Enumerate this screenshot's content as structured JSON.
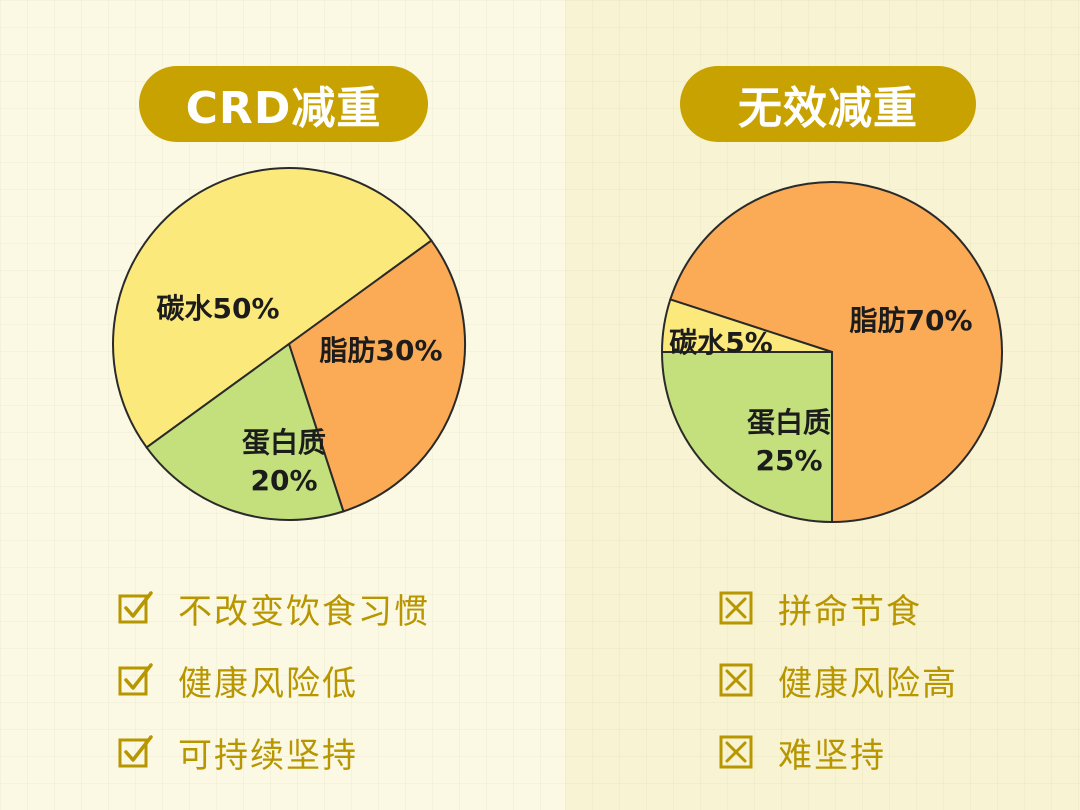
{
  "colors": {
    "accent": "#c7a200",
    "carb": "#fbe97c",
    "fat": "#fbab55",
    "protein": "#c3e07c",
    "text_gold": "#b89600"
  },
  "left": {
    "title": "CRD减重",
    "checks": [
      {
        "icon": "checked-box-icon",
        "text": "不改变饮食习惯"
      },
      {
        "icon": "checked-box-icon",
        "text": "健康风险低"
      },
      {
        "icon": "checked-box-icon",
        "text": "可持续坚持"
      }
    ]
  },
  "right": {
    "title": "无效减重",
    "checks": [
      {
        "icon": "crossed-box-icon",
        "text": "拼命节食"
      },
      {
        "icon": "crossed-box-icon",
        "text": "健康风险高"
      },
      {
        "icon": "crossed-box-icon",
        "text": "难坚持"
      }
    ]
  },
  "chart_data": [
    {
      "type": "pie",
      "title": "CRD减重",
      "slices": [
        {
          "label": "碳水50%",
          "value": 50,
          "color": "#fbe97c"
        },
        {
          "label": "脂肪30%",
          "value": 30,
          "color": "#fbab55"
        },
        {
          "label": "蛋白质20%",
          "value": 20,
          "color": "#c3e07c"
        }
      ]
    },
    {
      "type": "pie",
      "title": "无效减重",
      "slices": [
        {
          "label": "脂肪70%",
          "value": 70,
          "color": "#fbab55"
        },
        {
          "label": "蛋白质25%",
          "value": 25,
          "color": "#c3e07c"
        },
        {
          "label": "碳水5%",
          "value": 5,
          "color": "#fbe97c"
        }
      ]
    }
  ]
}
